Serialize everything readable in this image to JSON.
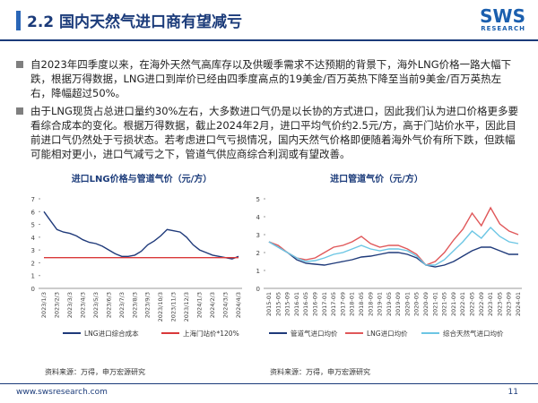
{
  "header": {
    "title": "2.2 国内天然气进口商有望减亏",
    "logo": "SWS",
    "logo_sub": "RESEARCH"
  },
  "bullets": [
    "自2023年四季度以来，在海外天然气高库存以及供暖季需求不达预期的背景下，海外LNG价格一路大幅下跌，根据万得数据，LNG进口到岸价已经由四季度高点的19美金/百万英热下降至当前9美金/百万英热左右，降幅超过50%。",
    "由于LNG现货占总进口量约30%左右，大多数进口气仍是以长协的方式进口，因此我们认为进口价格更多要看综合成本的变化。根据万得数据，截止2024年2月，进口平均气价约2.5元/方，高于门站价水平，因此目前进口气仍然处于亏损状态。若考虑进口气亏损情况，国内天然气价格即便随着海外气价有所下跌，但跌幅可能相对更小，进口气减亏之下，管道气供应商综合利润或有望改善。"
  ],
  "chart_data": [
    {
      "type": "line",
      "title": "进口LNG价格与管道气价（元/方）",
      "categories": [
        "2023/1/3",
        null,
        "2023/2/3",
        null,
        "2023/3/3",
        null,
        "2023/4/3",
        null,
        "2023/5/3",
        null,
        "2023/6/3",
        null,
        "2023/7/3",
        null,
        "2023/8/3",
        null,
        "2023/9/3",
        null,
        "2023/10/3",
        null,
        "2023/11/3",
        null,
        "2023/12/3",
        null,
        "2024/1/3",
        null,
        "2024/2/3",
        null,
        "2024/3/3",
        null,
        "2024/4/3"
      ],
      "series": [
        {
          "name": "LNG进口综合成本",
          "color": "#1f3a7a",
          "values": [
            6.0,
            5.3,
            4.6,
            4.4,
            4.3,
            4.1,
            3.8,
            3.6,
            3.5,
            3.3,
            3.0,
            2.7,
            2.5,
            2.5,
            2.6,
            2.9,
            3.4,
            3.7,
            4.1,
            4.6,
            4.5,
            4.4,
            4.0,
            3.4,
            3.0,
            2.8,
            2.6,
            2.5,
            2.4,
            2.3,
            2.5
          ]
        },
        {
          "name": "上海门站价*120%",
          "color": "#d9383a",
          "values": [
            2.4,
            2.4,
            2.4,
            2.4,
            2.4,
            2.4,
            2.4,
            2.4,
            2.4,
            2.4,
            2.4,
            2.4,
            2.4,
            2.4,
            2.4,
            2.4,
            2.4,
            2.4,
            2.4,
            2.4,
            2.4,
            2.4,
            2.4,
            2.4,
            2.4,
            2.4,
            2.4,
            2.4,
            2.4,
            2.4,
            2.4
          ]
        }
      ],
      "ylim": [
        0,
        7
      ],
      "yticks": [
        0,
        1,
        2,
        3,
        4,
        5,
        6,
        7
      ],
      "source": "资料来源：万得，申万宏源研究"
    },
    {
      "type": "line",
      "title": "进口管道气价（元/方）",
      "categories": [
        "2015-01",
        "2015-05",
        "2015-09",
        "2016-01",
        "2016-05",
        "2016-09",
        "2017-01",
        "2017-05",
        "2017-09",
        "2018-01",
        "2018-05",
        "2018-09",
        "2019-01",
        "2019-05",
        "2019-09",
        "2020-01",
        "2020-05",
        "2020-09",
        "2021-01",
        "2021-05",
        "2021-09",
        "2022-01",
        "2022-05",
        "2022-09",
        "2023-01",
        "2023-05",
        "2023-09",
        "2024-01"
      ],
      "series": [
        {
          "name": "管道气进口均价",
          "color": "#1f3a7a",
          "values": [
            2.6,
            2.3,
            2.0,
            1.6,
            1.4,
            1.35,
            1.3,
            1.4,
            1.5,
            1.6,
            1.75,
            1.8,
            1.9,
            2.0,
            2.0,
            1.9,
            1.7,
            1.3,
            1.2,
            1.3,
            1.5,
            1.8,
            2.1,
            2.3,
            2.3,
            2.1,
            1.9,
            1.9
          ]
        },
        {
          "name": "LNG进口均价",
          "color": "#e0585a",
          "values": [
            2.6,
            2.4,
            2.0,
            1.7,
            1.6,
            1.7,
            2.0,
            2.3,
            2.4,
            2.6,
            2.9,
            2.5,
            2.3,
            2.4,
            2.4,
            2.2,
            1.9,
            1.3,
            1.5,
            2.0,
            2.7,
            3.3,
            4.2,
            3.5,
            4.5,
            3.6,
            3.2,
            3.0
          ]
        },
        {
          "name": "综合天然气进口均价",
          "color": "#6cc6e4",
          "values": [
            2.6,
            2.3,
            2.0,
            1.7,
            1.5,
            1.55,
            1.7,
            1.9,
            2.0,
            2.2,
            2.4,
            2.2,
            2.1,
            2.2,
            2.2,
            2.1,
            1.8,
            1.3,
            1.3,
            1.6,
            2.1,
            2.6,
            3.2,
            2.8,
            3.4,
            2.9,
            2.6,
            2.5
          ]
        }
      ],
      "ylim": [
        0,
        5
      ],
      "yticks": [
        0,
        1,
        2,
        3,
        4,
        5
      ],
      "source": "资料来源：万得，申万宏源研究"
    }
  ],
  "footer": {
    "url": "www.swsresearch.com",
    "page": "11"
  }
}
